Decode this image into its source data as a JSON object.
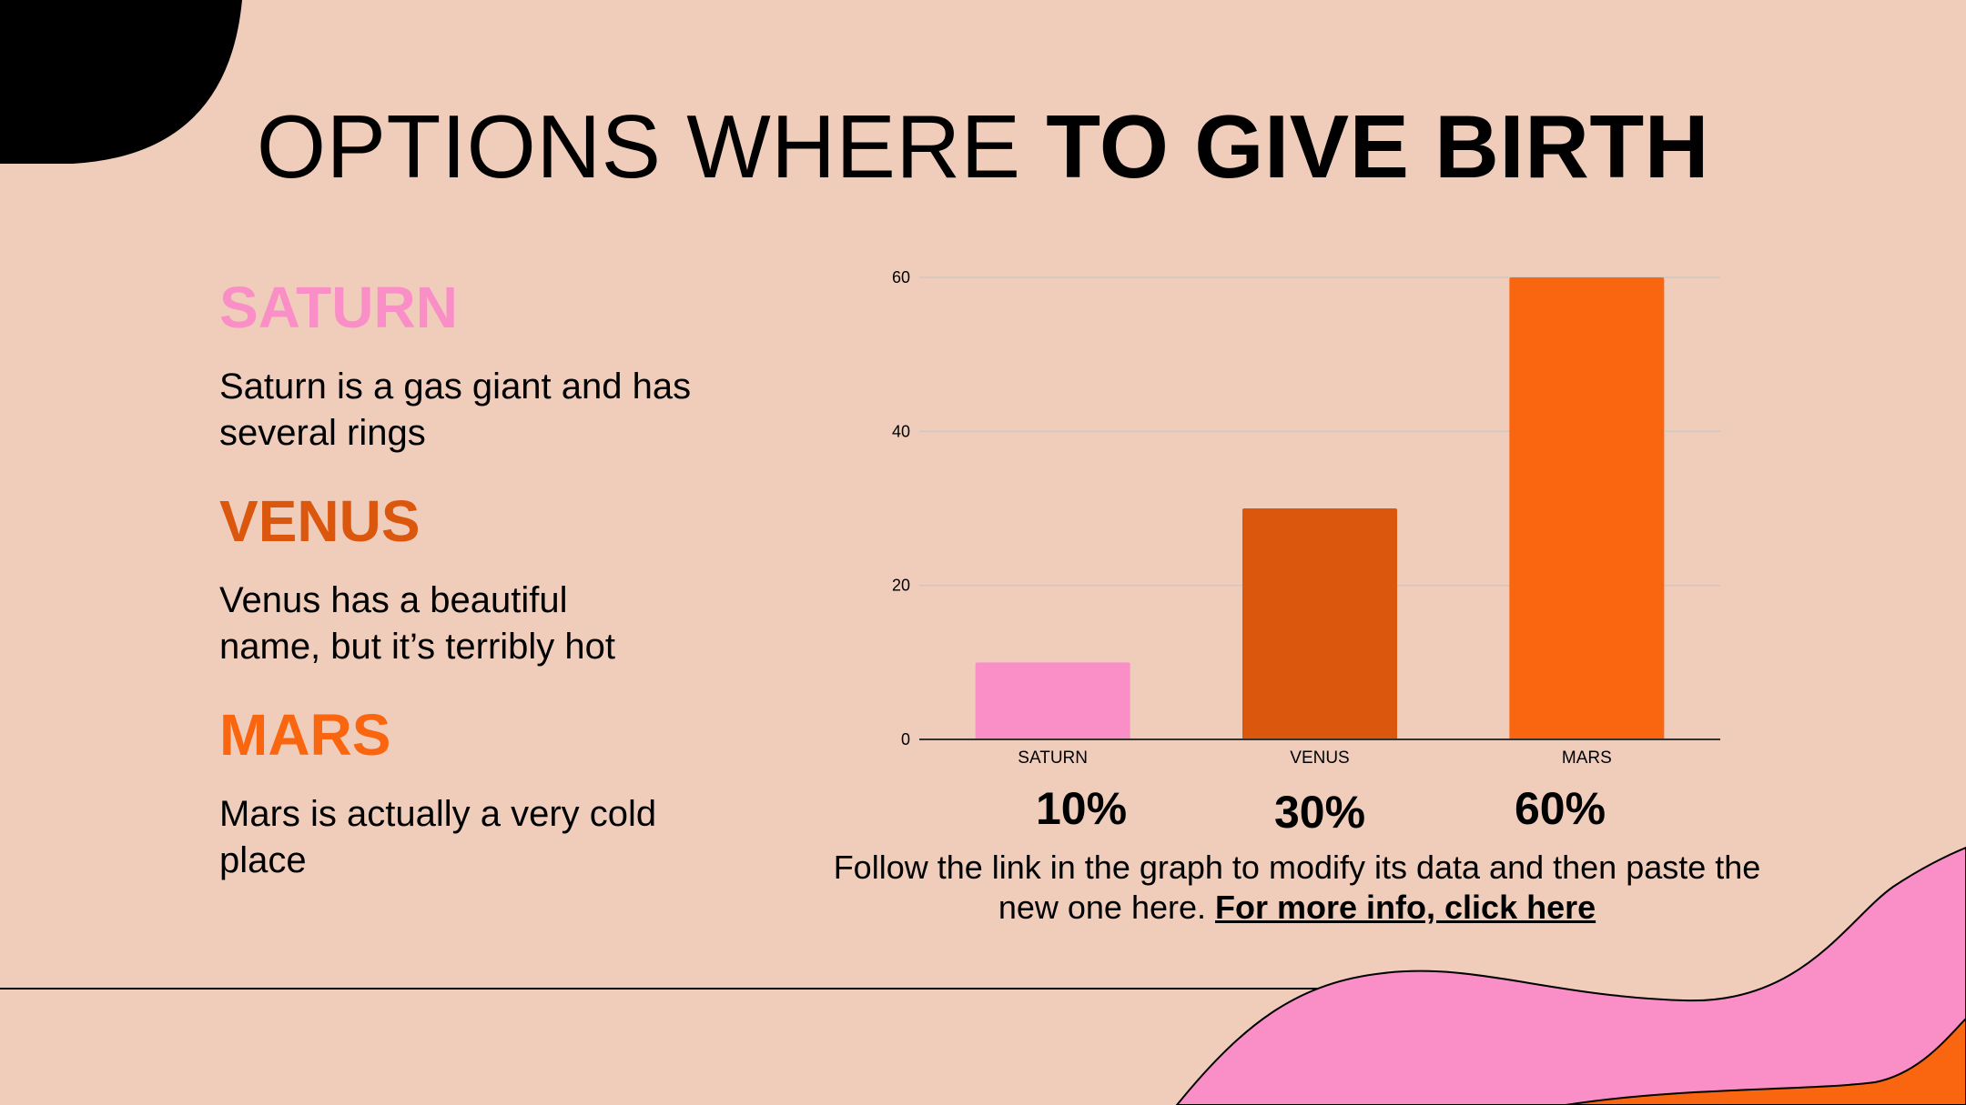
{
  "slide": {
    "title_regular": "OPTIONS WHERE ",
    "title_bold": "TO GIVE BIRTH"
  },
  "items": [
    {
      "heading": "SATURN",
      "text": "Saturn is a gas giant and has several rings",
      "color": "#F98FC6"
    },
    {
      "heading": "VENUS",
      "text": "Venus has a beautiful name, but it’s terribly hot",
      "color": "#DC570E"
    },
    {
      "heading": "MARS",
      "text": "Mars is actually a very cold place",
      "color": "#FA6510"
    }
  ],
  "percentages": [
    "10%",
    "30%",
    "60%"
  ],
  "footnote": {
    "text": "Follow the link in the graph to modify its data and then paste the new one here. ",
    "link": "For more info, click here"
  },
  "chart_data": {
    "type": "bar",
    "categories": [
      "SATURN",
      "VENUS",
      "MARS"
    ],
    "values": [
      10,
      30,
      60
    ],
    "colors": [
      "#F98FC6",
      "#DC570E",
      "#FA6510"
    ],
    "ylim": [
      0,
      60
    ],
    "yticks": [
      0,
      20,
      40,
      60
    ],
    "grid": true
  },
  "colors": {
    "background": "#F0CDBB",
    "pink": "#F98FC6",
    "orange": "#FA6510",
    "dark_orange": "#DC570E"
  }
}
